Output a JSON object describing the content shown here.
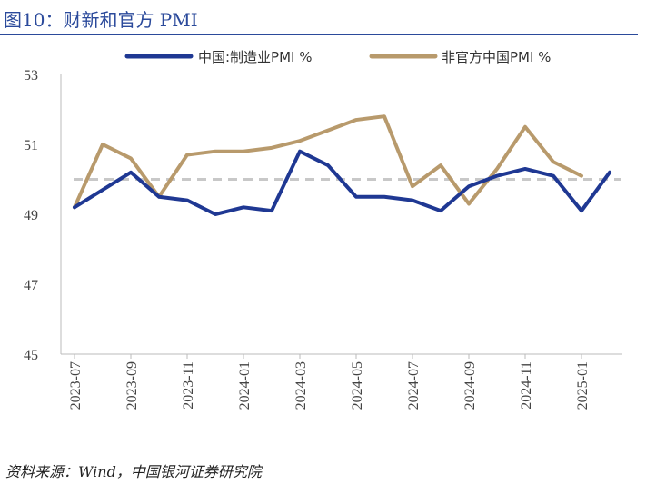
{
  "header": {
    "title": "图10：财新和官方 PMI"
  },
  "footer": {
    "source": "资料来源：Wind，中国银河证券研究院"
  },
  "colors": {
    "caixin": "#1f3893",
    "official": "#b89a6c",
    "reference": "#c8c8c8",
    "accent": "#2b4a9b"
  },
  "chart_data": {
    "type": "line",
    "x": [
      "2023-07",
      "2023-08",
      "2023-09",
      "2023-10",
      "2023-11",
      "2023-12",
      "2024-01",
      "2024-02",
      "2024-03",
      "2024-04",
      "2024-05",
      "2024-06",
      "2024-07",
      "2024-08",
      "2024-09",
      "2024-10",
      "2024-11",
      "2024-12",
      "2025-01",
      "2025-02"
    ],
    "x_tick_labels": [
      "2023-07",
      "2023-09",
      "2023-11",
      "2024-01",
      "2024-03",
      "2024-05",
      "2024-07",
      "2024-09",
      "2024-11",
      "2025-01"
    ],
    "ylim": [
      45,
      53
    ],
    "yticks": [
      45,
      47,
      49,
      51,
      53
    ],
    "reference_line": 50,
    "legend_position": "top",
    "grid": false,
    "series": [
      {
        "name": "中国:制造业PMI %",
        "color": "#1f3893",
        "values": [
          49.2,
          49.7,
          50.2,
          49.5,
          49.4,
          49.0,
          49.2,
          49.1,
          50.8,
          50.4,
          49.5,
          49.5,
          49.4,
          49.1,
          49.8,
          50.1,
          50.3,
          50.1,
          49.1,
          50.2
        ]
      },
      {
        "name": "非官方中国PMI %",
        "color": "#b89a6c",
        "values": [
          49.2,
          51.0,
          50.6,
          49.5,
          50.7,
          50.8,
          50.8,
          50.9,
          51.1,
          51.4,
          51.7,
          51.8,
          49.8,
          50.4,
          49.3,
          50.3,
          51.5,
          50.5,
          50.1,
          null
        ]
      }
    ]
  }
}
